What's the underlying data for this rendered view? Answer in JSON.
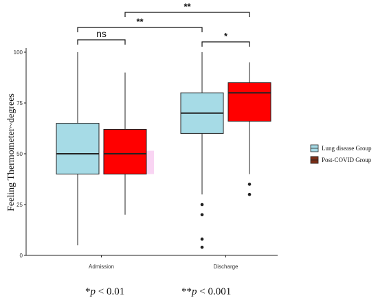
{
  "chart_data": {
    "type": "box",
    "title": "",
    "xlabel": "",
    "ylabel": "Feeling Thermometer~degrees",
    "ylim": [
      0,
      100
    ],
    "yticks": [
      "0",
      "25",
      "50",
      "75",
      "100"
    ],
    "categories": [
      "Admission",
      "Discharge"
    ],
    "legend": {
      "position": "right"
    },
    "series": [
      {
        "name": "Lung disease Group",
        "color": "#a6dbe6",
        "boxes": [
          {
            "min": 5,
            "q1": 40,
            "median": 50,
            "q3": 65,
            "max": 100,
            "outliers": []
          },
          {
            "min": 30,
            "q1": 60,
            "median": 70,
            "q3": 80,
            "max": 100,
            "outliers": [
              25,
              20,
              8,
              4
            ]
          }
        ]
      },
      {
        "name": "Post-COVID Group",
        "color": "#ff0000",
        "legend_color": "#7a2e17",
        "boxes": [
          {
            "min": 20,
            "q1": 40,
            "median": 50,
            "q3": 62,
            "max": 90,
            "outliers": []
          },
          {
            "min": 40,
            "q1": 66,
            "median": 80,
            "q3": 85,
            "max": 95,
            "outliers": [
              35,
              30
            ]
          }
        ]
      }
    ],
    "significance": [
      {
        "label": "**",
        "from": "Admission Lung disease Group",
        "to": "Discharge Post-COVID Group"
      },
      {
        "label": "ns",
        "from": "Admission Lung disease Group",
        "to": "Admission Post-COVID Group"
      },
      {
        "label": "**",
        "from": "Admission Lung disease Group",
        "to": "Discharge Lung disease Group"
      },
      {
        "label": "*",
        "from": "Discharge Lung disease Group",
        "to": "Discharge Post-COVID Group"
      }
    ],
    "footnotes": [
      {
        "stars": "*",
        "p": "p",
        "rest": " < 0.01"
      },
      {
        "stars": "**",
        "p": "p",
        "rest": " < 0.001"
      }
    ]
  }
}
